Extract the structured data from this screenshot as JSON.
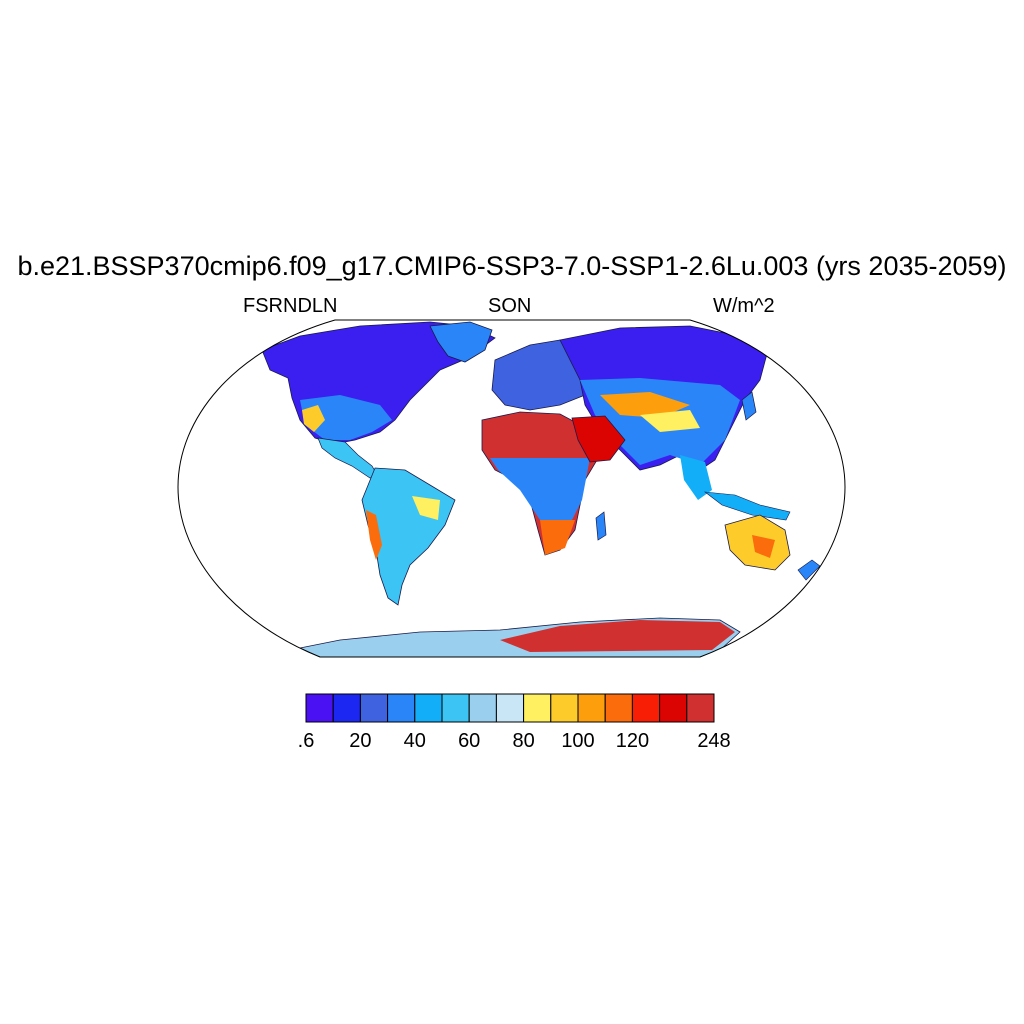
{
  "title": "b.e21.BSSP370cmip6.f09_g17.CMIP6-SSP3-7.0-SSP1-2.6Lu.003 (yrs 2035-2059)",
  "left_label": "FSRNDLN",
  "center_label": "SON",
  "right_label": "W/m^2",
  "colorbar": {
    "colors": [
      "#4a12f2",
      "#1c28f2",
      "#3f63e0",
      "#2a86f8",
      "#12aef8",
      "#3cc4f4",
      "#9ad0ee",
      "#c8e6f6",
      "#fef060",
      "#fdcc2a",
      "#fd9f0c",
      "#fb6c0c",
      "#f81e05",
      "#dc0303",
      "#d03030"
    ],
    "tick_labels": [
      ".6",
      "20",
      "40",
      "60",
      "80",
      "100",
      "120",
      "248"
    ],
    "tick_bins": [
      0,
      2,
      4,
      6,
      8,
      10,
      12,
      15
    ]
  }
}
